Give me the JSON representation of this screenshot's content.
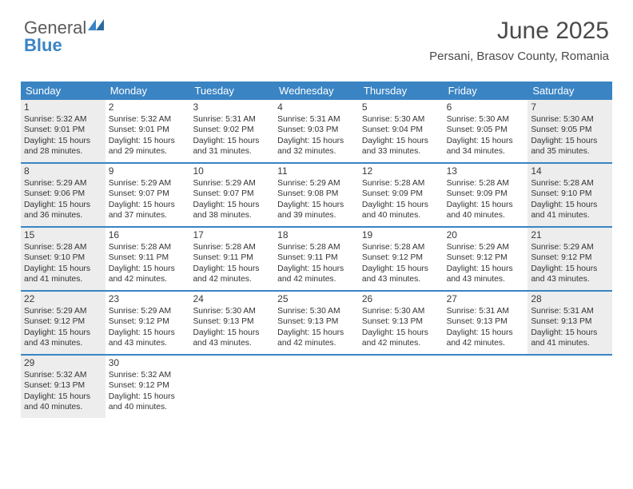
{
  "logo": {
    "text1": "General",
    "text2": "Blue"
  },
  "title": "June 2025",
  "location": "Persani, Brasov County, Romania",
  "colors": {
    "header_bg": "#3a84c4",
    "header_fg": "#ffffff",
    "shaded_bg": "#ededed",
    "row_border": "#3a84c4",
    "text": "#333333",
    "title_color": "#4a4a4a"
  },
  "weekdays": [
    "Sunday",
    "Monday",
    "Tuesday",
    "Wednesday",
    "Thursday",
    "Friday",
    "Saturday"
  ],
  "weeks": [
    [
      {
        "n": "1",
        "shaded": true,
        "sunrise": "5:32 AM",
        "sunset": "9:01 PM",
        "daylight": "15 hours and 28 minutes."
      },
      {
        "n": "2",
        "shaded": false,
        "sunrise": "5:32 AM",
        "sunset": "9:01 PM",
        "daylight": "15 hours and 29 minutes."
      },
      {
        "n": "3",
        "shaded": false,
        "sunrise": "5:31 AM",
        "sunset": "9:02 PM",
        "daylight": "15 hours and 31 minutes."
      },
      {
        "n": "4",
        "shaded": false,
        "sunrise": "5:31 AM",
        "sunset": "9:03 PM",
        "daylight": "15 hours and 32 minutes."
      },
      {
        "n": "5",
        "shaded": false,
        "sunrise": "5:30 AM",
        "sunset": "9:04 PM",
        "daylight": "15 hours and 33 minutes."
      },
      {
        "n": "6",
        "shaded": false,
        "sunrise": "5:30 AM",
        "sunset": "9:05 PM",
        "daylight": "15 hours and 34 minutes."
      },
      {
        "n": "7",
        "shaded": true,
        "sunrise": "5:30 AM",
        "sunset": "9:05 PM",
        "daylight": "15 hours and 35 minutes."
      }
    ],
    [
      {
        "n": "8",
        "shaded": true,
        "sunrise": "5:29 AM",
        "sunset": "9:06 PM",
        "daylight": "15 hours and 36 minutes."
      },
      {
        "n": "9",
        "shaded": false,
        "sunrise": "5:29 AM",
        "sunset": "9:07 PM",
        "daylight": "15 hours and 37 minutes."
      },
      {
        "n": "10",
        "shaded": false,
        "sunrise": "5:29 AM",
        "sunset": "9:07 PM",
        "daylight": "15 hours and 38 minutes."
      },
      {
        "n": "11",
        "shaded": false,
        "sunrise": "5:29 AM",
        "sunset": "9:08 PM",
        "daylight": "15 hours and 39 minutes."
      },
      {
        "n": "12",
        "shaded": false,
        "sunrise": "5:28 AM",
        "sunset": "9:09 PM",
        "daylight": "15 hours and 40 minutes."
      },
      {
        "n": "13",
        "shaded": false,
        "sunrise": "5:28 AM",
        "sunset": "9:09 PM",
        "daylight": "15 hours and 40 minutes."
      },
      {
        "n": "14",
        "shaded": true,
        "sunrise": "5:28 AM",
        "sunset": "9:10 PM",
        "daylight": "15 hours and 41 minutes."
      }
    ],
    [
      {
        "n": "15",
        "shaded": true,
        "sunrise": "5:28 AM",
        "sunset": "9:10 PM",
        "daylight": "15 hours and 41 minutes."
      },
      {
        "n": "16",
        "shaded": false,
        "sunrise": "5:28 AM",
        "sunset": "9:11 PM",
        "daylight": "15 hours and 42 minutes."
      },
      {
        "n": "17",
        "shaded": false,
        "sunrise": "5:28 AM",
        "sunset": "9:11 PM",
        "daylight": "15 hours and 42 minutes."
      },
      {
        "n": "18",
        "shaded": false,
        "sunrise": "5:28 AM",
        "sunset": "9:11 PM",
        "daylight": "15 hours and 42 minutes."
      },
      {
        "n": "19",
        "shaded": false,
        "sunrise": "5:28 AM",
        "sunset": "9:12 PM",
        "daylight": "15 hours and 43 minutes."
      },
      {
        "n": "20",
        "shaded": false,
        "sunrise": "5:29 AM",
        "sunset": "9:12 PM",
        "daylight": "15 hours and 43 minutes."
      },
      {
        "n": "21",
        "shaded": true,
        "sunrise": "5:29 AM",
        "sunset": "9:12 PM",
        "daylight": "15 hours and 43 minutes."
      }
    ],
    [
      {
        "n": "22",
        "shaded": true,
        "sunrise": "5:29 AM",
        "sunset": "9:12 PM",
        "daylight": "15 hours and 43 minutes."
      },
      {
        "n": "23",
        "shaded": false,
        "sunrise": "5:29 AM",
        "sunset": "9:12 PM",
        "daylight": "15 hours and 43 minutes."
      },
      {
        "n": "24",
        "shaded": false,
        "sunrise": "5:30 AM",
        "sunset": "9:13 PM",
        "daylight": "15 hours and 43 minutes."
      },
      {
        "n": "25",
        "shaded": false,
        "sunrise": "5:30 AM",
        "sunset": "9:13 PM",
        "daylight": "15 hours and 42 minutes."
      },
      {
        "n": "26",
        "shaded": false,
        "sunrise": "5:30 AM",
        "sunset": "9:13 PM",
        "daylight": "15 hours and 42 minutes."
      },
      {
        "n": "27",
        "shaded": false,
        "sunrise": "5:31 AM",
        "sunset": "9:13 PM",
        "daylight": "15 hours and 42 minutes."
      },
      {
        "n": "28",
        "shaded": true,
        "sunrise": "5:31 AM",
        "sunset": "9:13 PM",
        "daylight": "15 hours and 41 minutes."
      }
    ],
    [
      {
        "n": "29",
        "shaded": true,
        "sunrise": "5:32 AM",
        "sunset": "9:13 PM",
        "daylight": "15 hours and 40 minutes."
      },
      {
        "n": "30",
        "shaded": false,
        "sunrise": "5:32 AM",
        "sunset": "9:12 PM",
        "daylight": "15 hours and 40 minutes."
      },
      {
        "empty": true
      },
      {
        "empty": true
      },
      {
        "empty": true
      },
      {
        "empty": true
      },
      {
        "empty": true
      }
    ]
  ],
  "labels": {
    "sunrise": "Sunrise:",
    "sunset": "Sunset:",
    "daylight": "Daylight:"
  }
}
